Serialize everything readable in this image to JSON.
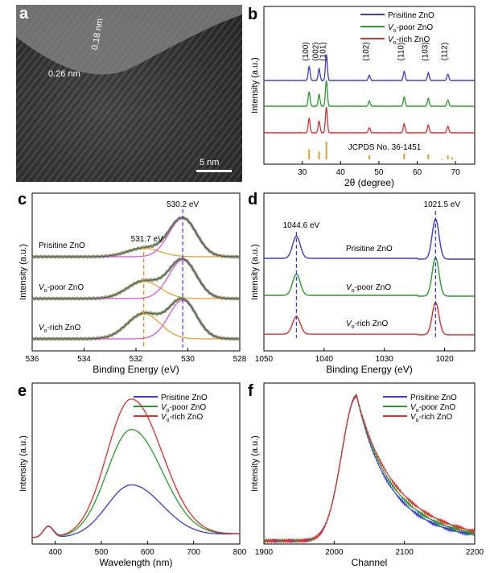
{
  "panel_a": {
    "label": "a",
    "lattice_1": "0.26 nm",
    "lattice_2": "0.18 nm",
    "scalebar": "5 nm"
  },
  "chart_data": [
    {
      "id": "b",
      "label": "b",
      "type": "line",
      "xlabel": "2θ (degree)",
      "ylabel": "Intensity (a.u.)",
      "xlim": [
        20,
        75
      ],
      "xticks": [
        30,
        40,
        50,
        60,
        70
      ],
      "legend": "top-right",
      "peaks": [
        {
          "x": 31.8,
          "name": "(100)",
          "h": 0.55
        },
        {
          "x": 34.4,
          "name": "(002)",
          "h": 0.45
        },
        {
          "x": 36.3,
          "name": "(101)",
          "h": 1.0
        },
        {
          "x": 47.5,
          "name": "(102)",
          "h": 0.2
        },
        {
          "x": 56.6,
          "name": "(110)",
          "h": 0.35
        },
        {
          "x": 62.9,
          "name": "(103)",
          "h": 0.3
        },
        {
          "x": 68.0,
          "name": "(112)",
          "h": 0.25
        }
      ],
      "series": [
        {
          "name": "Prisitine ZnO",
          "name_sub": "",
          "color": "#3b3bd6"
        },
        {
          "name": "V",
          "name_sub": "o",
          "name_rest": "-poor ZnO",
          "color": "#2a9a2a"
        },
        {
          "name": "V",
          "name_sub": "o",
          "name_rest": "-rich ZnO",
          "color": "#d93030"
        }
      ],
      "reference": {
        "label": "JCPDS No. 36-1451",
        "color": "#e0a030",
        "x": [
          31.8,
          34.4,
          36.3,
          47.5,
          56.6,
          62.9,
          66.4,
          68.0,
          69.1
        ],
        "h": [
          0.57,
          0.44,
          1.0,
          0.23,
          0.32,
          0.29,
          0.04,
          0.23,
          0.11
        ]
      }
    },
    {
      "id": "c",
      "label": "c",
      "type": "line",
      "xlabel": "Binding Energy (eV)",
      "ylabel": "Intensity (a.u.)",
      "xlim": [
        536,
        528
      ],
      "xticks": [
        536,
        534,
        532,
        530,
        528
      ],
      "annotations": [
        "530.2 eV",
        "531.7 eV"
      ],
      "peak_main": 530.2,
      "peak_shoulder": 531.7,
      "series": [
        {
          "name": "Prisitine ZnO",
          "name_sub": "",
          "main": 1.0,
          "shoulder": 0.22
        },
        {
          "name": "V",
          "name_sub": "o",
          "name_rest": "-poor ZnO",
          "main": 1.0,
          "shoulder": 0.45
        },
        {
          "name": "V",
          "name_sub": "o",
          "name_rest": "-rich ZnO",
          "main": 1.0,
          "shoulder": 0.65
        }
      ]
    },
    {
      "id": "d",
      "label": "d",
      "type": "line",
      "xlabel": "Binding Energy (eV)",
      "ylabel": "Intensity (a.u.)",
      "xlim": [
        1050,
        1015
      ],
      "xticks": [
        1050,
        1040,
        1030,
        1020
      ],
      "annotations": [
        "1044.6 eV",
        "1021.5 eV"
      ],
      "peak_1": 1044.6,
      "peak_2": 1021.5,
      "series": [
        {
          "name": "Prisitine ZnO",
          "name_sub": "",
          "color": "#3b3bd6"
        },
        {
          "name": "V",
          "name_sub": "o",
          "name_rest": "-poor ZnO",
          "color": "#2a9a2a"
        },
        {
          "name": "V",
          "name_sub": "o",
          "name_rest": "-rich ZnO",
          "color": "#d93030"
        }
      ]
    },
    {
      "id": "e",
      "label": "e",
      "type": "line",
      "xlabel": "Wavelength (nm)",
      "ylabel": "Intensity (a.u.)",
      "xlim": [
        350,
        800
      ],
      "xticks": [
        400,
        500,
        600,
        700,
        800
      ],
      "legend": "top-right",
      "peak_x": 565,
      "series": [
        {
          "name": "Prisitine ZnO",
          "name_sub": "",
          "color": "#3b3bd6",
          "peak": 0.38
        },
        {
          "name": "V",
          "name_sub": "o",
          "name_rest": "-poor ZnO",
          "color": "#2a9a2a",
          "peak": 0.78
        },
        {
          "name": "V",
          "name_sub": "o",
          "name_rest": "-rich ZnO",
          "color": "#d93030",
          "peak": 1.0
        }
      ]
    },
    {
      "id": "f",
      "label": "f",
      "type": "line",
      "xlabel": "Channel",
      "ylabel": "Intensity (a.u.)",
      "xlim": [
        1900,
        2200
      ],
      "xticks": [
        1900,
        2000,
        2100,
        2200
      ],
      "legend": "top-right",
      "peak_x": 2032,
      "series": [
        {
          "name": "Prisitine ZnO",
          "name_sub": "",
          "color": "#3b3bd6",
          "decay": 55
        },
        {
          "name": "V",
          "name_sub": "o",
          "name_rest": "-poor ZnO",
          "color": "#2a9a2a",
          "decay": 60
        },
        {
          "name": "V",
          "name_sub": "o",
          "name_rest": "-rich ZnO",
          "color": "#d93030",
          "decay": 66
        }
      ]
    }
  ]
}
